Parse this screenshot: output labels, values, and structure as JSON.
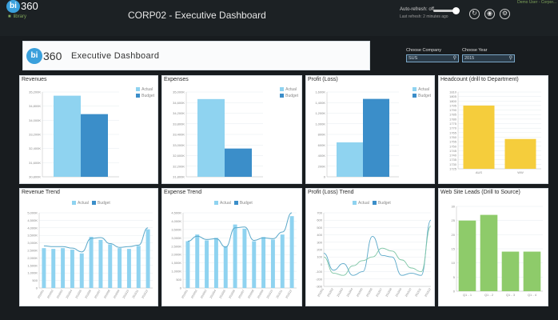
{
  "app": {
    "logo_bi": "bi",
    "logo_360": "360",
    "library_label": "library",
    "title": "CORP02 - Executive Dashboard",
    "auto_refresh_label": "Auto-refresh: off",
    "auto_refresh_sub": "Last refresh: 2 minutes ago",
    "user_link": "Demo User - Corpor..."
  },
  "header": {
    "logo_bi": "bi",
    "logo_360": "360",
    "title": "Executive Dashboard"
  },
  "filters": {
    "company_label": "Choose Company",
    "company_value": "SUS",
    "year_label": "Choose Year",
    "year_value": "2015"
  },
  "legend": {
    "actual": "Actual",
    "budget": "Budget"
  },
  "colors": {
    "actual": "#8fd3f0",
    "budget": "#3b8ec9",
    "line": "#5aa8c9",
    "headcount": "#f5cd3c",
    "leads": "#8ecb6a"
  },
  "panels": {
    "revenues": "Revenues",
    "expenses": "Expenses",
    "profit": "Profit (Loss)",
    "headcount": "Headcount (drill to Department)",
    "revenue_trend": "Revenue Trend",
    "expense_trend": "Expense Trend",
    "profit_trend": "Profit (Loss) Trend",
    "web_leads": "Web Site Leads (Drill to Source)"
  },
  "chart_data": [
    {
      "id": "revenues",
      "type": "bar",
      "categories": [
        "Actual",
        "Budget"
      ],
      "values": [
        35200000,
        34200000
      ],
      "ylim": [
        30800000,
        35400000
      ],
      "yticks": [
        "30,800K",
        "31,600K",
        "32,400K",
        "33,200K",
        "34,000K",
        "34,800K",
        "35,200K"
      ]
    },
    {
      "id": "expenses",
      "type": "bar",
      "categories": [
        "Actual",
        "Budget"
      ],
      "values": [
        34700000,
        32600000
      ],
      "ylim": [
        31400000,
        35000000
      ],
      "yticks": [
        "31,800K",
        "32,200K",
        "32,600K",
        "33,000K",
        "33,400K",
        "33,800K",
        "34,200K",
        "34,600K",
        "35,000K"
      ]
    },
    {
      "id": "profit",
      "type": "bar",
      "categories": [
        "Actual",
        "Budget"
      ],
      "values": [
        650000,
        1470000
      ],
      "ylim": [
        0,
        1600000
      ],
      "yticks": [
        "0",
        "200K",
        "400K",
        "600K",
        "800K",
        "1,000K",
        "1,200K",
        "1,400K",
        "1,600K"
      ]
    },
    {
      "id": "headcount",
      "type": "bar",
      "categories": [
        "AUS",
        "WW"
      ],
      "values": [
        1795,
        1758
      ],
      "ylim": [
        1725,
        1810
      ],
      "yticks": [
        "1725",
        "1730",
        "1735",
        "1740",
        "1745",
        "1750",
        "1755",
        "1760",
        "1765",
        "1770",
        "1775",
        "1780",
        "1785",
        "1790",
        "1795",
        "1800",
        "1805",
        "1810"
      ]
    },
    {
      "id": "revenue_trend",
      "type": "bar",
      "x": [
        "201501",
        "201502",
        "201503",
        "201504",
        "201505",
        "201506",
        "201507",
        "201508",
        "201509",
        "201510",
        "201511",
        "201512"
      ],
      "series": [
        {
          "name": "Actual",
          "values": [
            2650,
            2600,
            2650,
            2550,
            2300,
            3400,
            3200,
            2900,
            2650,
            2600,
            2800,
            3900
          ]
        },
        {
          "name": "Budget",
          "values": [
            2800,
            2750,
            2750,
            2650,
            2400,
            3300,
            3350,
            2950,
            2700,
            2750,
            2850,
            4000
          ]
        }
      ],
      "ylim": [
        0,
        5000
      ],
      "yticks": [
        "0",
        "500",
        "1,000K",
        "1,500K",
        "2,000K",
        "2,500K",
        "3,000K",
        "3,500K",
        "4,000K",
        "4,500K",
        "5,000K"
      ]
    },
    {
      "id": "expense_trend",
      "type": "bar",
      "x": [
        "201501",
        "201502",
        "201503",
        "201504",
        "201505",
        "201506",
        "201507",
        "201508",
        "201509",
        "201510",
        "201511",
        "201512"
      ],
      "series": [
        {
          "name": "Actual",
          "values": [
            2800,
            3200,
            2850,
            3000,
            2500,
            3800,
            3550,
            2800,
            3050,
            2900,
            3200,
            4300
          ]
        },
        {
          "name": "Budget",
          "values": [
            2800,
            3100,
            2900,
            2950,
            2450,
            3600,
            3650,
            2850,
            3000,
            2950,
            3350,
            4500
          ]
        }
      ],
      "ylim": [
        0,
        4500
      ],
      "yticks": [
        "0",
        "500",
        "1,000K",
        "1,500K",
        "2,000K",
        "2,500K",
        "3,000K",
        "3,500K",
        "4,000K",
        "4,500K"
      ]
    },
    {
      "id": "profit_trend",
      "type": "line",
      "x": [
        "201501",
        "201502",
        "201503",
        "201504",
        "201505",
        "201506",
        "201507",
        "201508",
        "201509",
        "201510",
        "201511",
        "201512"
      ],
      "series": [
        {
          "name": "Actual",
          "values": [
            150,
            -80,
            10,
            -150,
            -100,
            380,
            120,
            100,
            -150,
            -120,
            -150,
            600
          ]
        },
        {
          "name": "Budget",
          "values": [
            100,
            -120,
            -150,
            -20,
            50,
            100,
            220,
            180,
            60,
            -50,
            -100,
            520
          ]
        }
      ],
      "ylim": [
        -300,
        700
      ],
      "yticks": [
        "-300",
        "-200",
        "-100",
        "0",
        "100",
        "200",
        "300",
        "400",
        "500",
        "600",
        "700"
      ]
    },
    {
      "id": "web_leads",
      "type": "bar",
      "categories": [
        "Q1 - 1",
        "Q1 - 2",
        "Q1 - 3",
        "Q1 - 4"
      ],
      "values": [
        25,
        27,
        14,
        14
      ],
      "ylim": [
        0,
        30
      ],
      "yticks": [
        "0",
        "5",
        "10",
        "15",
        "20",
        "25",
        "30"
      ]
    }
  ]
}
